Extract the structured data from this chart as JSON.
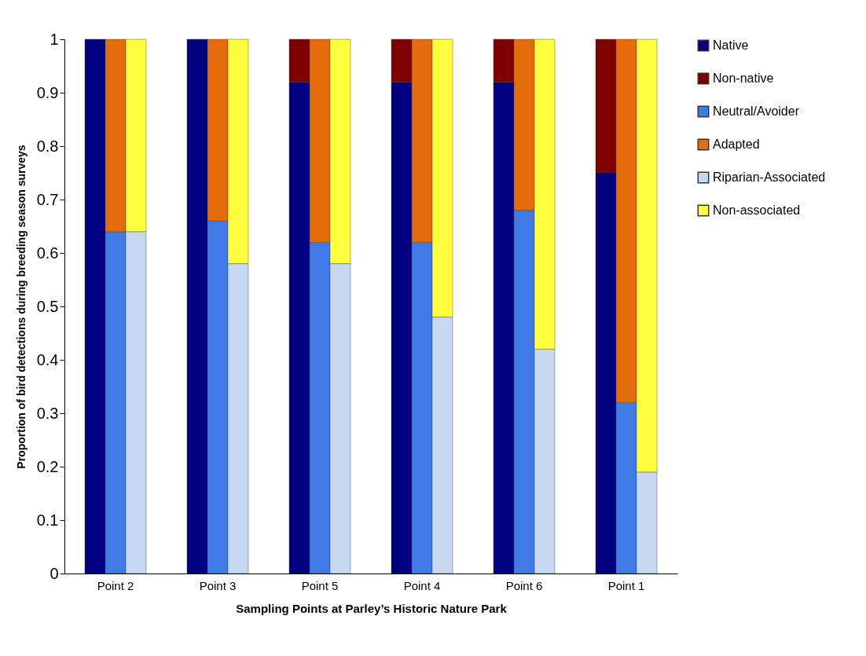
{
  "chart_data": {
    "type": "bar",
    "stacked": true,
    "xlabel": "Sampling Points at Parley’s Historic Nature Park",
    "ylabel": "Proportion of bird detections during breeding season surveys",
    "categories": [
      null,
      "Point 2",
      null,
      null,
      "Point 3",
      null,
      null,
      "Point 5",
      null,
      null,
      "Point 4",
      null,
      null,
      "Point 6",
      null,
      null,
      "Point 1",
      null
    ],
    "series": [
      {
        "name": "Native",
        "color": "#000080",
        "values": [
          1,
          null,
          null,
          1,
          null,
          null,
          0.92,
          null,
          null,
          0.92,
          null,
          null,
          0.92,
          null,
          null,
          0.75,
          null,
          null
        ]
      },
      {
        "name": "Non-native",
        "color": "#800000",
        "values": [
          null,
          null,
          null,
          null,
          null,
          null,
          0.08,
          null,
          null,
          0.08,
          null,
          null,
          0.08,
          null,
          null,
          0.25,
          null,
          null
        ]
      },
      {
        "name": "Neutral/Avoider",
        "color": "#3f7ae6",
        "values": [
          null,
          0.64,
          null,
          null,
          0.66,
          null,
          null,
          0.62,
          null,
          null,
          0.62,
          null,
          null,
          0.68,
          null,
          null,
          0.32,
          null
        ]
      },
      {
        "name": "Adapted",
        "color": "#e46c0a",
        "values": [
          null,
          0.36,
          null,
          null,
          0.34,
          null,
          null,
          0.38,
          null,
          null,
          0.38,
          null,
          null,
          0.32,
          null,
          null,
          0.68,
          null
        ]
      },
      {
        "name": "Riparian-Associated",
        "color": "#c6d9f1",
        "values": [
          null,
          null,
          0.64,
          null,
          null,
          0.58,
          null,
          null,
          0.58,
          null,
          null,
          0.48,
          null,
          null,
          0.42,
          null,
          null,
          0.19
        ]
      },
      {
        "name": "Non-associated",
        "color": "#ffff40",
        "values": [
          null,
          null,
          0.36,
          null,
          null,
          0.42,
          null,
          null,
          0.42,
          null,
          null,
          0.52,
          null,
          null,
          0.58,
          null,
          null,
          0.81
        ]
      }
    ],
    "ylim": [
      0,
      1
    ],
    "yticks": [
      0,
      0.1,
      0.2,
      0.3,
      0.4,
      0.5,
      0.6,
      0.7,
      0.8,
      0.9,
      1
    ],
    "grid": false,
    "legend": "right"
  }
}
